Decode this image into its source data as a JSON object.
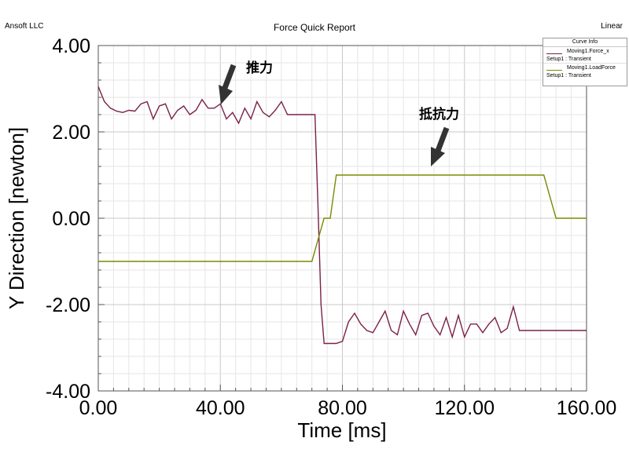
{
  "header": {
    "company": "Ansoft LLC",
    "title": "Force Quick Report",
    "scale": "Linear"
  },
  "legend": {
    "title": "Curve Info",
    "items": [
      {
        "name": "Moving1.Force_x",
        "setup": "Setup1 : Transient",
        "color": "#7a2149"
      },
      {
        "name": "Moving1.LoadForce",
        "setup": "Setup1 : Transient",
        "color": "#7d8a00"
      }
    ]
  },
  "annotations": {
    "thrust": "推力",
    "resistance": "抵抗力"
  },
  "chart_data": {
    "type": "line",
    "xlabel": "Time [ms]",
    "ylabel": "Y Direction [newton]",
    "xlim": [
      0,
      160
    ],
    "ylim": [
      -4,
      4
    ],
    "xticks": [
      "0.00",
      "40.00",
      "80.00",
      "120.00",
      "160.00"
    ],
    "yticks": [
      "4.00",
      "2.00",
      "0.00",
      "-2.00",
      "-4.00"
    ],
    "grid": true,
    "series": [
      {
        "name": "Moving1.Force_x",
        "color": "#7a2149",
        "x": [
          0,
          2,
          4,
          6,
          8,
          10,
          12,
          14,
          16,
          18,
          20,
          22,
          24,
          26,
          28,
          30,
          32,
          34,
          36,
          38,
          40,
          42,
          44,
          46,
          48,
          50,
          52,
          54,
          56,
          58,
          60,
          62,
          64,
          66,
          68,
          70,
          71,
          72,
          73,
          74,
          76,
          78,
          80,
          82,
          84,
          86,
          88,
          90,
          92,
          94,
          96,
          98,
          100,
          102,
          104,
          106,
          108,
          110,
          112,
          114,
          116,
          118,
          120,
          122,
          124,
          126,
          128,
          130,
          132,
          134,
          136,
          138,
          140,
          142,
          144,
          146,
          148,
          150,
          160
        ],
        "y": [
          3.05,
          2.7,
          2.55,
          2.48,
          2.45,
          2.5,
          2.48,
          2.65,
          2.7,
          2.3,
          2.6,
          2.65,
          2.3,
          2.5,
          2.6,
          2.4,
          2.5,
          2.75,
          2.55,
          2.55,
          2.65,
          2.3,
          2.45,
          2.2,
          2.55,
          2.3,
          2.7,
          2.45,
          2.35,
          2.5,
          2.7,
          2.4,
          2.4,
          2.4,
          2.4,
          2.4,
          2.4,
          0.3,
          -2.0,
          -2.9,
          -2.9,
          -2.9,
          -2.85,
          -2.4,
          -2.2,
          -2.45,
          -2.6,
          -2.65,
          -2.4,
          -2.15,
          -2.6,
          -2.7,
          -2.15,
          -2.45,
          -2.7,
          -2.25,
          -2.2,
          -2.5,
          -2.7,
          -2.3,
          -2.75,
          -2.25,
          -2.75,
          -2.45,
          -2.45,
          -2.65,
          -2.45,
          -2.3,
          -2.65,
          -2.55,
          -2.05,
          -2.6,
          -2.6,
          -2.6,
          -2.6,
          -2.6,
          -2.6,
          -2.6,
          -2.6
        ]
      },
      {
        "name": "Moving1.LoadForce",
        "color": "#7d8a00",
        "x": [
          0,
          70,
          72,
          74,
          76,
          78,
          146,
          148,
          150,
          160
        ],
        "y": [
          -1.0,
          -1.0,
          -0.5,
          0.0,
          0.0,
          1.0,
          1.0,
          0.5,
          0.0,
          0.0
        ]
      }
    ]
  }
}
